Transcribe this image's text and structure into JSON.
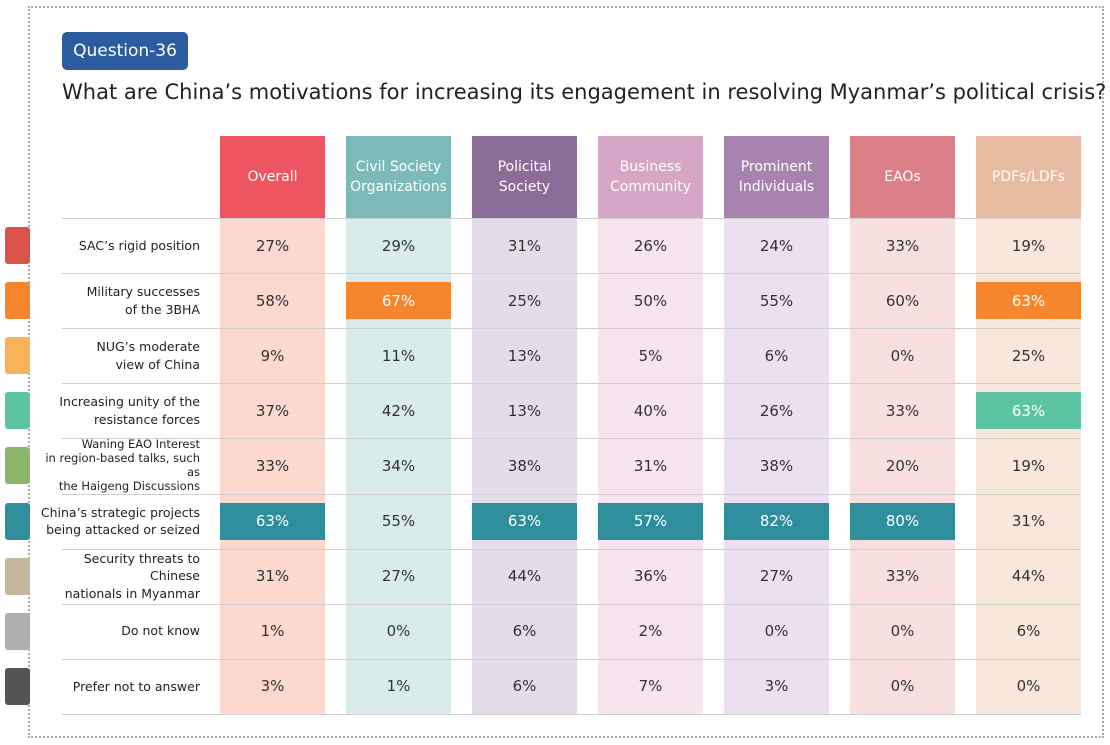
{
  "header": {
    "badge": "Question-36",
    "title": "What are China’s motivations for increasing its engagement in resolving Myanmar’s political crisis?"
  },
  "table": {
    "columns": [
      {
        "label": "Overall",
        "color": "#ee5560",
        "tint": "#fcd8cf"
      },
      {
        "label": "Civil Society\nOrganizations",
        "color": "#7cb9b9",
        "tint": "#d9ecec"
      },
      {
        "label": "Policital\nSociety",
        "color": "#8b6b98",
        "tint": "#e5dcea"
      },
      {
        "label": "Business\nCommunity",
        "color": "#d8a6c5",
        "tint": "#f6e4ee"
      },
      {
        "label": "Prominent\nIndividuals",
        "color": "#a983b0",
        "tint": "#ebdff0"
      },
      {
        "label": "EAOs",
        "color": "#dc8087",
        "tint": "#f8e0e0"
      },
      {
        "label": "PDFs/LDFs",
        "color": "#e7bba2",
        "tint": "#f9e7dd"
      }
    ],
    "rows": [
      {
        "label": "SAC’s rigid position",
        "color": "#d9534a",
        "values": [
          "27%",
          "29%",
          "31%",
          "26%",
          "24%",
          "33%",
          "19%"
        ],
        "highlighted": []
      },
      {
        "label": "Military successes\nof the 3BHA",
        "color": "#f5862e",
        "values": [
          "58%",
          "67%",
          "25%",
          "50%",
          "55%",
          "60%",
          "63%"
        ],
        "highlighted": [
          1,
          6
        ]
      },
      {
        "label": "NUG’s moderate\nview of China",
        "color": "#fbb359",
        "values": [
          "9%",
          "11%",
          "13%",
          "5%",
          "6%",
          "0%",
          "25%"
        ],
        "highlighted": []
      },
      {
        "label": "Increasing unity of the\nresistance forces",
        "color": "#5cc4a2",
        "values": [
          "37%",
          "42%",
          "13%",
          "40%",
          "26%",
          "33%",
          "63%"
        ],
        "highlighted": [
          6
        ]
      },
      {
        "label": "Waning EAO Interest\nin region-based talks, such as\nthe Haigeng Discussions",
        "color": "#8db56a",
        "values": [
          "33%",
          "34%",
          "38%",
          "31%",
          "38%",
          "20%",
          "19%"
        ],
        "highlighted": []
      },
      {
        "label": "China’s strategic projects\nbeing attacked or seized",
        "color": "#2e8e9c",
        "values": [
          "63%",
          "55%",
          "63%",
          "57%",
          "82%",
          "80%",
          "31%"
        ],
        "highlighted": [
          0,
          2,
          3,
          4,
          5
        ]
      },
      {
        "label": "Security threats to Chinese\nnationals in Myanmar",
        "color": "#c5b69d",
        "values": [
          "31%",
          "27%",
          "44%",
          "36%",
          "27%",
          "33%",
          "44%"
        ],
        "highlighted": []
      },
      {
        "label": "Do not know",
        "color": "#aeaeae",
        "values": [
          "1%",
          "0%",
          "6%",
          "2%",
          "0%",
          "0%",
          "6%"
        ],
        "highlighted": []
      },
      {
        "label": "Prefer not to answer",
        "color": "#545454",
        "values": [
          "3%",
          "1%",
          "6%",
          "7%",
          "3%",
          "0%",
          "0%"
        ],
        "highlighted": []
      }
    ]
  }
}
